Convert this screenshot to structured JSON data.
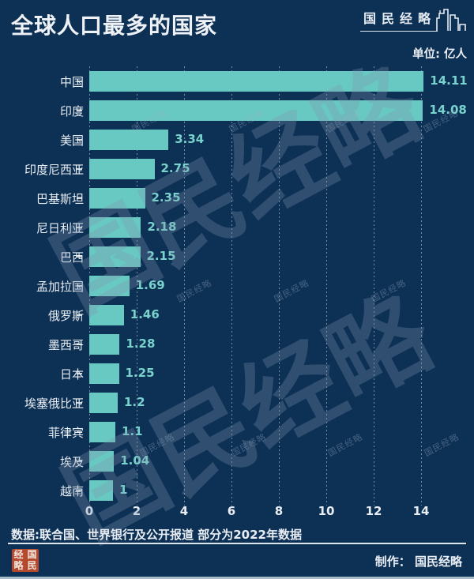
{
  "header": {
    "title": "全球人口最多的国家",
    "unit": "单位: 亿人",
    "logo_text": "国民经略"
  },
  "chart_data": {
    "type": "bar",
    "orientation": "horizontal",
    "title": "全球人口最多的国家",
    "unit_label": "单位: 亿人",
    "categories": [
      "中国",
      "印度",
      "美国",
      "印度尼西亚",
      "巴基斯坦",
      "尼日利亚",
      "巴西",
      "孟加拉国",
      "俄罗斯",
      "墨西哥",
      "日本",
      "埃塞俄比亚",
      "菲律宾",
      "埃及",
      "越南"
    ],
    "values": [
      14.11,
      14.08,
      3.34,
      2.75,
      2.35,
      2.18,
      2.15,
      1.69,
      1.46,
      1.28,
      1.25,
      1.2,
      1.1,
      1.04,
      1
    ],
    "x_ticks": [
      0,
      2,
      4,
      6,
      8,
      10,
      12,
      14
    ],
    "xlim": [
      0,
      16.2
    ],
    "grid": "vertical-dashed",
    "legend": "none",
    "bar_color": "#68c8c2",
    "value_label_color": "#79d2cc"
  },
  "watermark": {
    "text": "国民经略"
  },
  "footer": {
    "source": "数据:联合国、世界银行及公开报道 部分为2022年数据",
    "credit": "制作： 国民经略",
    "seal": [
      "经",
      "国",
      "略",
      "民"
    ]
  }
}
